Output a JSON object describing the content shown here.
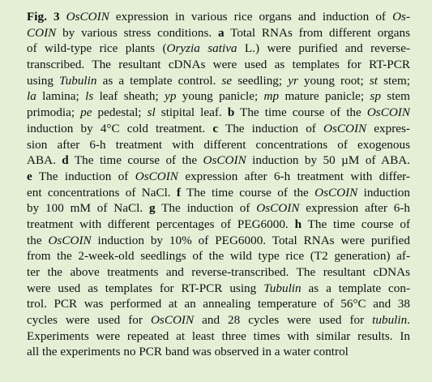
{
  "caption": {
    "lines": [
      [
        {
          "text": "Fig. 3",
          "style": "bold"
        },
        " ",
        {
          "text": "OsCOIN",
          "style": "italic"
        },
        " expression in various rice organs and induction of ",
        {
          "text": "Os-",
          "style": "italic"
        }
      ],
      [
        {
          "text": "COIN",
          "style": "italic"
        },
        " by various stress conditions. ",
        {
          "text": "a",
          "style": "bold"
        },
        " Total RNAs from different organs"
      ],
      [
        "of wild-type rice plants (",
        {
          "text": "Oryzia sativa",
          "style": "italic"
        },
        " L.) were purified and reverse-"
      ],
      [
        "transcribed. The resultant cDNAs were used as templates for RT-PCR"
      ],
      [
        "using ",
        {
          "text": "Tubulin",
          "style": "italic"
        },
        " as a template control. ",
        {
          "text": "se",
          "style": "italic"
        },
        " seedling; ",
        {
          "text": "yr",
          "style": "italic"
        },
        " young root; ",
        {
          "text": "st",
          "style": "italic"
        },
        " stem;"
      ],
      [
        {
          "text": "la",
          "style": "italic"
        },
        " lamina; ",
        {
          "text": "ls",
          "style": "italic"
        },
        " leaf sheath; ",
        {
          "text": "yp",
          "style": "italic"
        },
        " young panicle; ",
        {
          "text": "mp",
          "style": "italic"
        },
        " mature panicle; ",
        {
          "text": "sp",
          "style": "italic"
        },
        " stem"
      ],
      [
        "primodia; ",
        {
          "text": "pe",
          "style": "italic"
        },
        " pedestal; ",
        {
          "text": "sl",
          "style": "italic"
        },
        " stipital leaf. ",
        {
          "text": "b",
          "style": "bold"
        },
        " The time course of the ",
        {
          "text": "OsCOIN",
          "style": "italic"
        }
      ],
      [
        "induction by 4°C cold treatment. ",
        {
          "text": "c",
          "style": "bold"
        },
        " The induction of ",
        {
          "text": "OsCOIN",
          "style": "italic"
        },
        " expres-"
      ],
      [
        "sion after 6-h treatment with different concentrations of exogenous"
      ],
      [
        "ABA. ",
        {
          "text": "d",
          "style": "bold"
        },
        " The time course of the ",
        {
          "text": "OsCOIN",
          "style": "italic"
        },
        " induction by 50 µM of ABA."
      ],
      [
        {
          "text": "e",
          "style": "bold"
        },
        " The induction of ",
        {
          "text": "OsCOIN",
          "style": "italic"
        },
        " expression after 6-h treatment with differ-"
      ],
      [
        "ent concentrations of NaCl. ",
        {
          "text": "f",
          "style": "bold"
        },
        " The time course of the ",
        {
          "text": "OsCOIN",
          "style": "italic"
        },
        " induction"
      ],
      [
        "by 100 mM of NaCl. ",
        {
          "text": "g",
          "style": "bold"
        },
        " The induction of ",
        {
          "text": "OsCOIN",
          "style": "italic"
        },
        " expression after 6-h"
      ],
      [
        "treatment with different percentages of PEG6000. ",
        {
          "text": "h",
          "style": "bold"
        },
        " The time course of"
      ],
      [
        "the ",
        {
          "text": "OsCOIN",
          "style": "italic"
        },
        " induction by 10% of PEG6000. Total RNAs were purified"
      ],
      [
        "from the 2-week-old seedlings of the wild type rice (T2 generation) af-"
      ],
      [
        "ter the above treatments and reverse-transcribed. The resultant cDNAs"
      ],
      [
        "were used as templates for RT-PCR using ",
        {
          "text": "Tubulin",
          "style": "italic"
        },
        " as a template con-"
      ],
      [
        "trol. PCR was performed at an annealing temperature of 56°C and 38"
      ],
      [
        "cycles were used for ",
        {
          "text": "OsCOIN",
          "style": "italic"
        },
        " and 28 cycles were used for ",
        {
          "text": "tubulin",
          "style": "italic"
        },
        "."
      ],
      [
        "Experiments were repeated at least three times with similar results. In"
      ],
      [
        "all the experiments no PCR band was observed in a water control"
      ]
    ]
  }
}
